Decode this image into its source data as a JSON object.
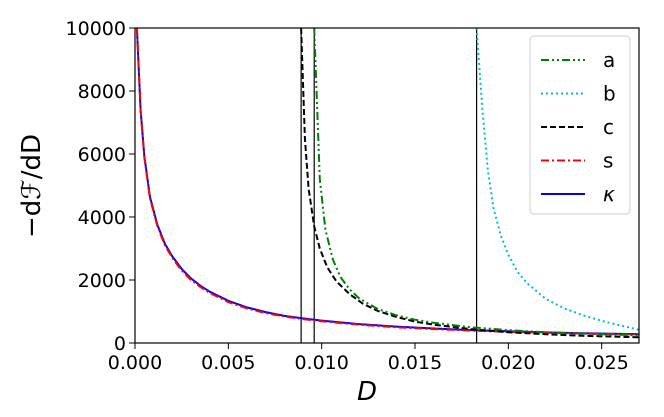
{
  "chart_data": {
    "type": "line",
    "xlabel": "D",
    "ylabel": "−dℱ/dD",
    "xlim": [
      0.0,
      0.027
    ],
    "ylim": [
      0,
      10000
    ],
    "x_ticks": [
      "0.000",
      "0.005",
      "0.010",
      "0.015",
      "0.020",
      "0.025"
    ],
    "y_ticks": [
      "0",
      "2000",
      "4000",
      "6000",
      "8000",
      "10000"
    ],
    "grid": false,
    "legend_position": "top-right",
    "vertical_lines_x": [
      0.0089,
      0.0096,
      0.0183
    ],
    "series": [
      {
        "name": "a",
        "color": "#008000",
        "style": "dashdot-dot",
        "x": [
          0.0096,
          0.0099,
          0.0102,
          0.0106,
          0.011,
          0.0115,
          0.012,
          0.013,
          0.014,
          0.015,
          0.016,
          0.018,
          0.02,
          0.022,
          0.024,
          0.027
        ],
        "y": [
          10000,
          5200,
          3600,
          2650,
          2100,
          1700,
          1420,
          1080,
          880,
          740,
          640,
          500,
          410,
          340,
          300,
          240
        ]
      },
      {
        "name": "b",
        "color": "#00bfbf",
        "style": "dotted",
        "x": [
          0.0183,
          0.0186,
          0.0189,
          0.0192,
          0.0196,
          0.02,
          0.0205,
          0.021,
          0.022,
          0.023,
          0.024,
          0.025,
          0.026,
          0.027
        ],
        "y": [
          10000,
          7500,
          5500,
          4300,
          3400,
          2800,
          2250,
          1900,
          1400,
          1100,
          880,
          700,
          560,
          420
        ]
      },
      {
        "name": "c",
        "color": "#000000",
        "style": "dashed",
        "x": [
          0.0089,
          0.0091,
          0.0093,
          0.0096,
          0.0099,
          0.0103,
          0.0108,
          0.0115,
          0.0122,
          0.013,
          0.014,
          0.015,
          0.016,
          0.018,
          0.02,
          0.022,
          0.024,
          0.027
        ],
        "y": [
          10000,
          6500,
          4900,
          3700,
          3000,
          2400,
          1950,
          1550,
          1250,
          1020,
          830,
          680,
          580,
          440,
          340,
          280,
          230,
          180
        ]
      },
      {
        "name": "s",
        "color": "#ff0000",
        "style": "dashdot",
        "x": [
          0.0001,
          0.0003,
          0.0005,
          0.0008,
          0.0012,
          0.0016,
          0.002,
          0.0025,
          0.003,
          0.0035,
          0.004,
          0.005,
          0.006,
          0.007,
          0.008,
          0.009,
          0.01,
          0.012,
          0.014,
          0.016,
          0.018,
          0.02,
          0.022,
          0.024,
          0.027
        ],
        "y": [
          10000,
          7400,
          5900,
          4600,
          3700,
          3100,
          2700,
          2300,
          2000,
          1780,
          1590,
          1300,
          1100,
          950,
          840,
          760,
          690,
          580,
          500,
          440,
          395,
          355,
          325,
          300,
          270
        ]
      },
      {
        "name": "κ",
        "color": "#0000ff",
        "style": "solid",
        "x": [
          0.0001,
          0.0003,
          0.0005,
          0.0008,
          0.0012,
          0.0016,
          0.002,
          0.0025,
          0.003,
          0.0035,
          0.004,
          0.005,
          0.006,
          0.007,
          0.008,
          0.009,
          0.01,
          0.012,
          0.014,
          0.016,
          0.018,
          0.02,
          0.022,
          0.024,
          0.027
        ],
        "y": [
          10000,
          7400,
          5950,
          4650,
          3750,
          3150,
          2750,
          2350,
          2050,
          1820,
          1630,
          1340,
          1130,
          980,
          860,
          780,
          710,
          600,
          520,
          460,
          410,
          370,
          335,
          310,
          280
        ]
      }
    ]
  }
}
